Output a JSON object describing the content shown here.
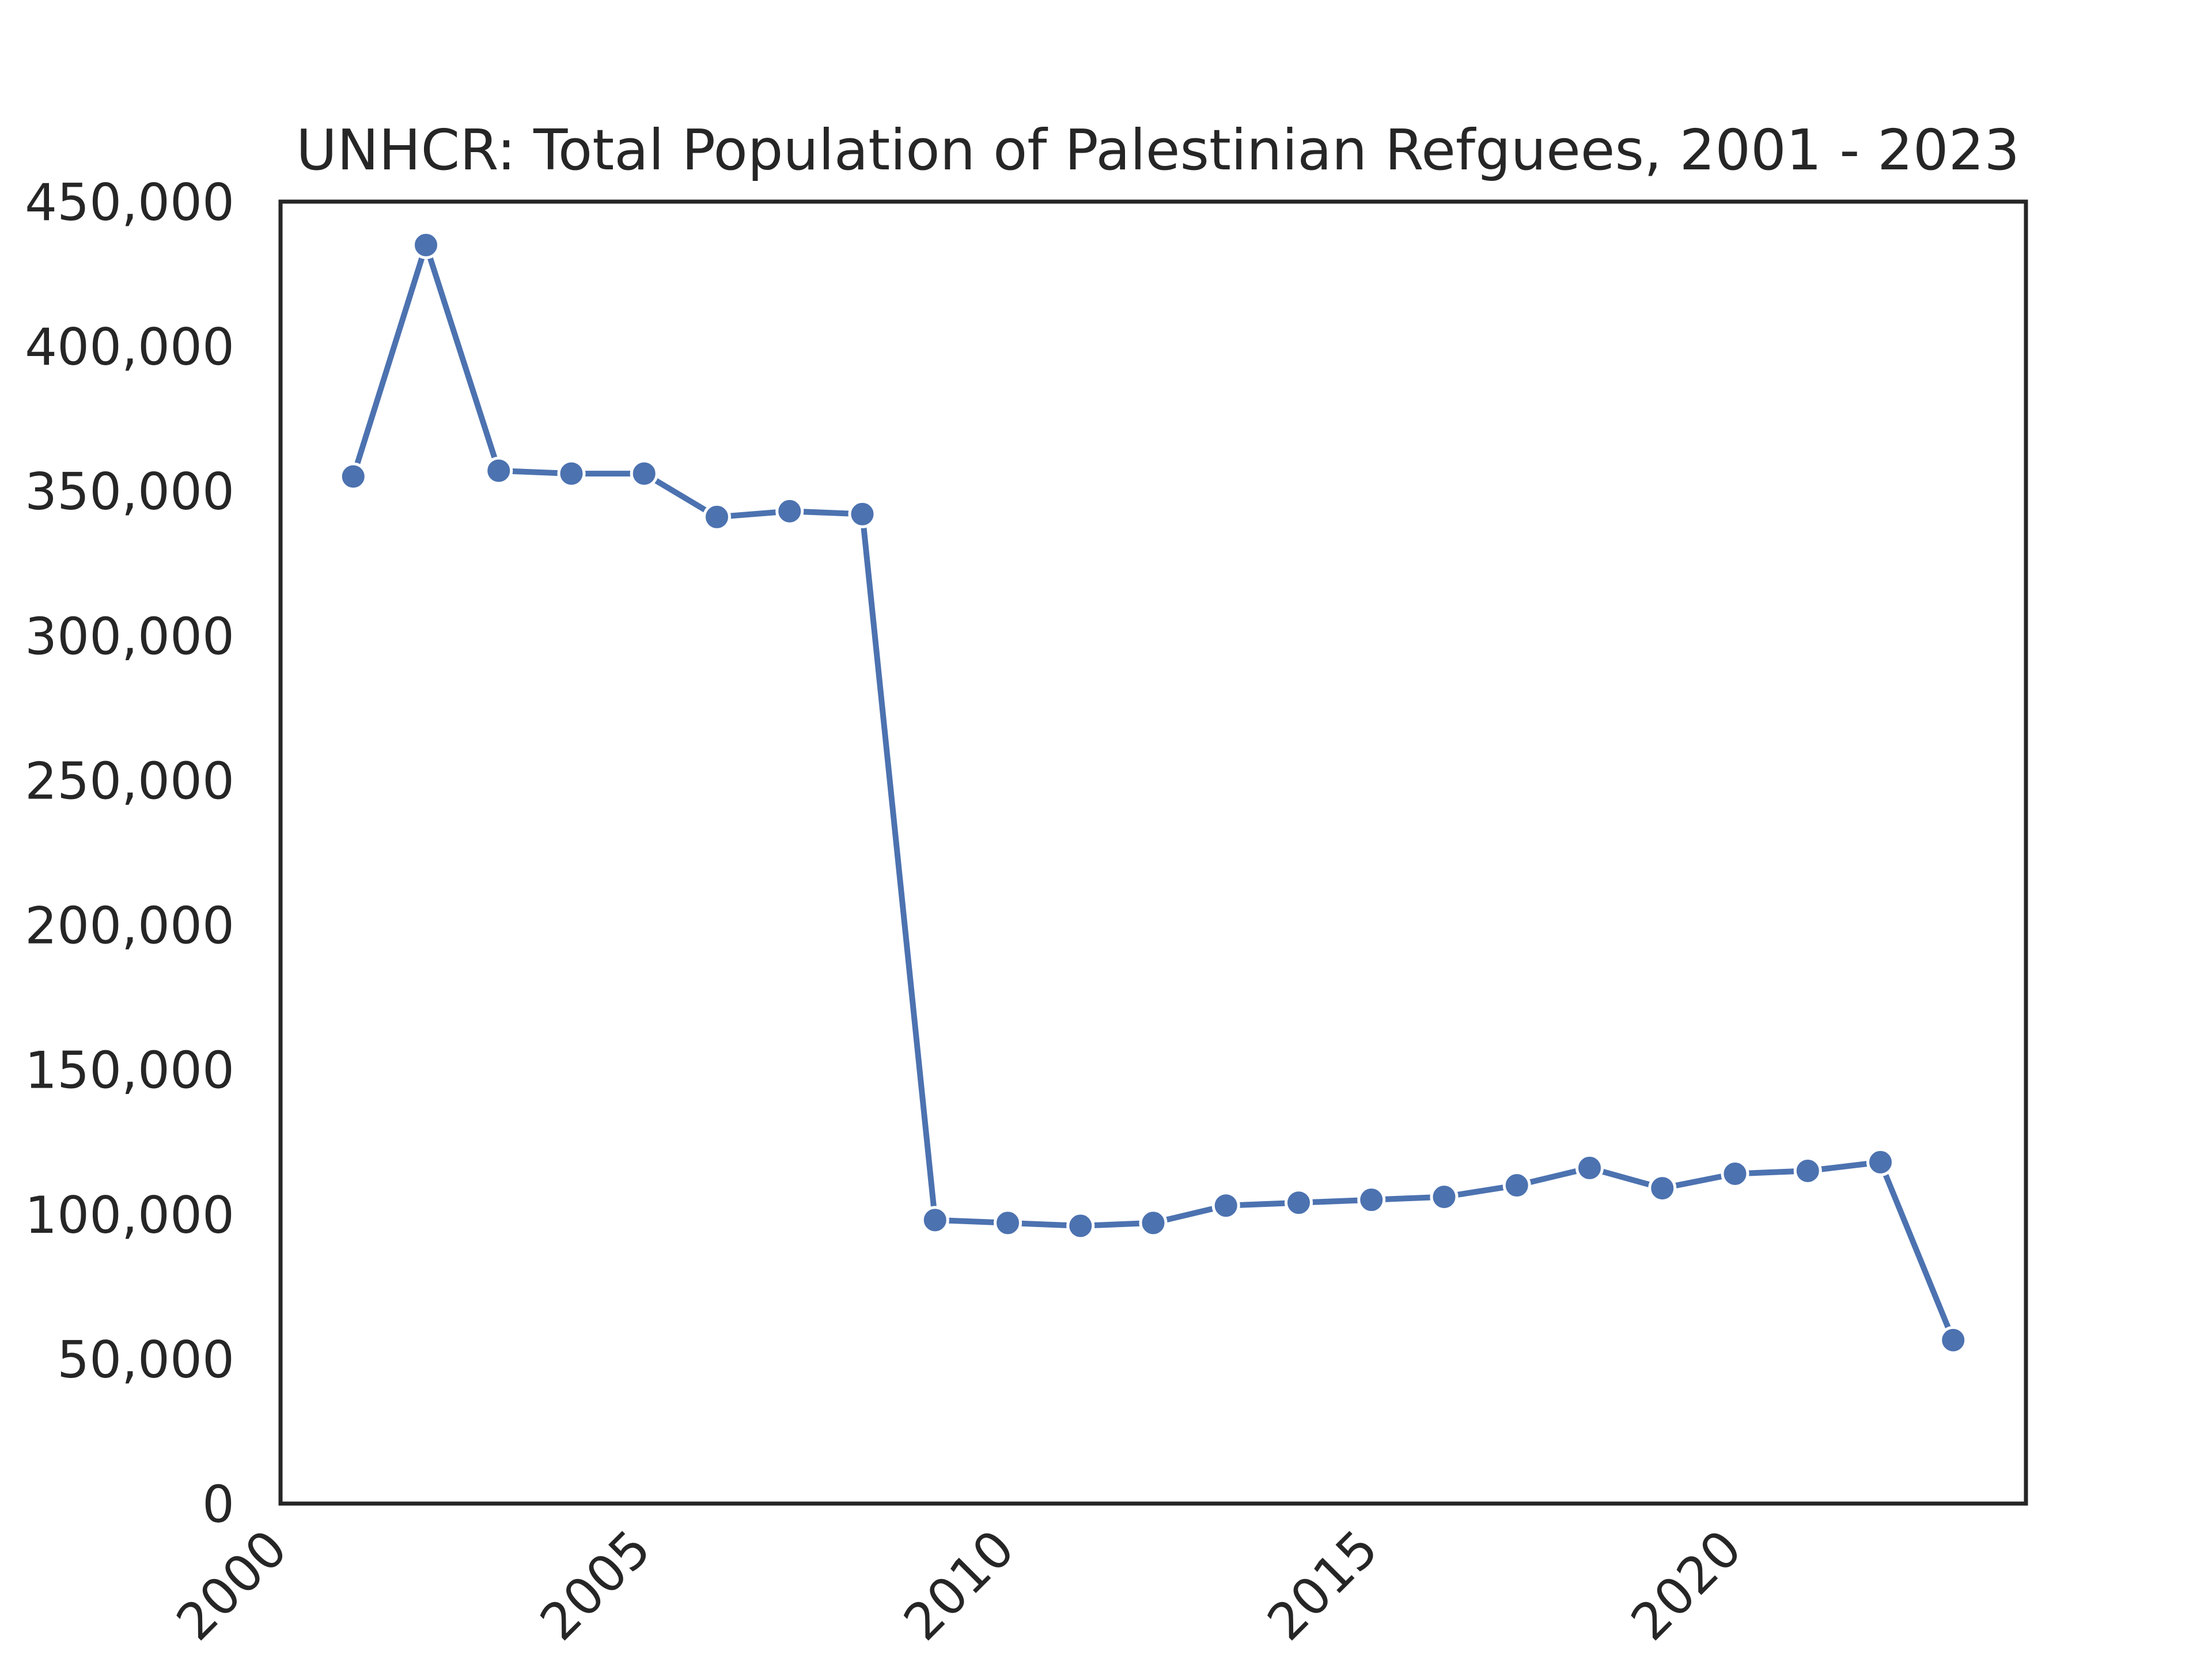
{
  "chart_data": {
    "type": "line",
    "title": "UNHCR: Total Population of Palestinian Refguees, 2001 - 2023",
    "xlabel": "",
    "ylabel": "",
    "xlim": [
      2000,
      2024
    ],
    "ylim": [
      0,
      450000
    ],
    "x_ticks": [
      "2000",
      "2005",
      "2010",
      "2015",
      "2020"
    ],
    "y_ticks": [
      "0",
      "50,000",
      "100,000",
      "150,000",
      "200,000",
      "250,000",
      "300,000",
      "350,000",
      "400,000",
      "450,000"
    ],
    "grid": false,
    "legend": "none",
    "color": "#4c72b0",
    "series": [
      {
        "x": [
          2001,
          2002,
          2003,
          2004,
          2005,
          2006,
          2007,
          2008,
          2009,
          2010,
          2011,
          2012,
          2013,
          2014,
          2015,
          2016,
          2017,
          2018,
          2019,
          2020,
          2021,
          2022,
          2023
        ],
        "values": [
          355000,
          435000,
          357000,
          356000,
          356000,
          341000,
          343000,
          342000,
          98000,
          97000,
          96000,
          97000,
          103000,
          104000,
          105000,
          106000,
          110000,
          116000,
          109000,
          114000,
          115000,
          118000,
          56500
        ]
      }
    ]
  }
}
